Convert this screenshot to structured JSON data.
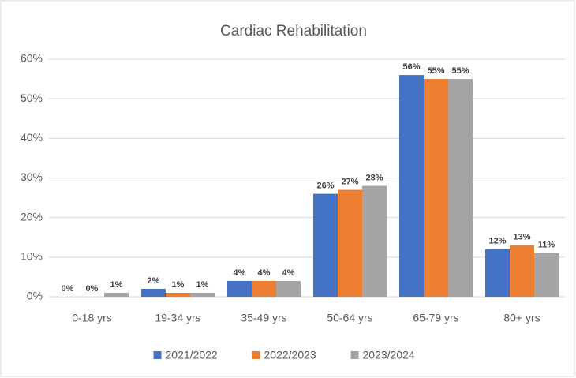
{
  "chart_data": {
    "type": "bar",
    "title": "Cardiac Rehabilitation",
    "categories": [
      "0-18 yrs",
      "19-34 yrs",
      "35-49 yrs",
      "50-64 yrs",
      "65-79 yrs",
      "80+ yrs"
    ],
    "series": [
      {
        "name": "2021/2022",
        "color": "#4472c4",
        "values": [
          0,
          2,
          4,
          26,
          56,
          12
        ],
        "value_labels": [
          "0%",
          "2%",
          "4%",
          "26%",
          "56%",
          "12%"
        ]
      },
      {
        "name": "2022/2023",
        "color": "#ed7d31",
        "values": [
          0,
          1,
          4,
          27,
          55,
          13
        ],
        "value_labels": [
          "0%",
          "1%",
          "4%",
          "27%",
          "55%",
          "13%"
        ]
      },
      {
        "name": "2023/2024",
        "color": "#a5a5a5",
        "values": [
          1,
          1,
          4,
          28,
          55,
          11
        ],
        "value_labels": [
          "1%",
          "1%",
          "4%",
          "28%",
          "55%",
          "11%"
        ]
      }
    ],
    "ylim": [
      0,
      60
    ],
    "yticks": [
      {
        "value": 0,
        "label": "0%"
      },
      {
        "value": 10,
        "label": "10%"
      },
      {
        "value": 20,
        "label": "20%"
      },
      {
        "value": 30,
        "label": "30%"
      },
      {
        "value": 40,
        "label": "40%"
      },
      {
        "value": 50,
        "label": "50%"
      },
      {
        "value": 60,
        "label": "60%"
      }
    ],
    "grid": true,
    "legend": "bottom"
  }
}
